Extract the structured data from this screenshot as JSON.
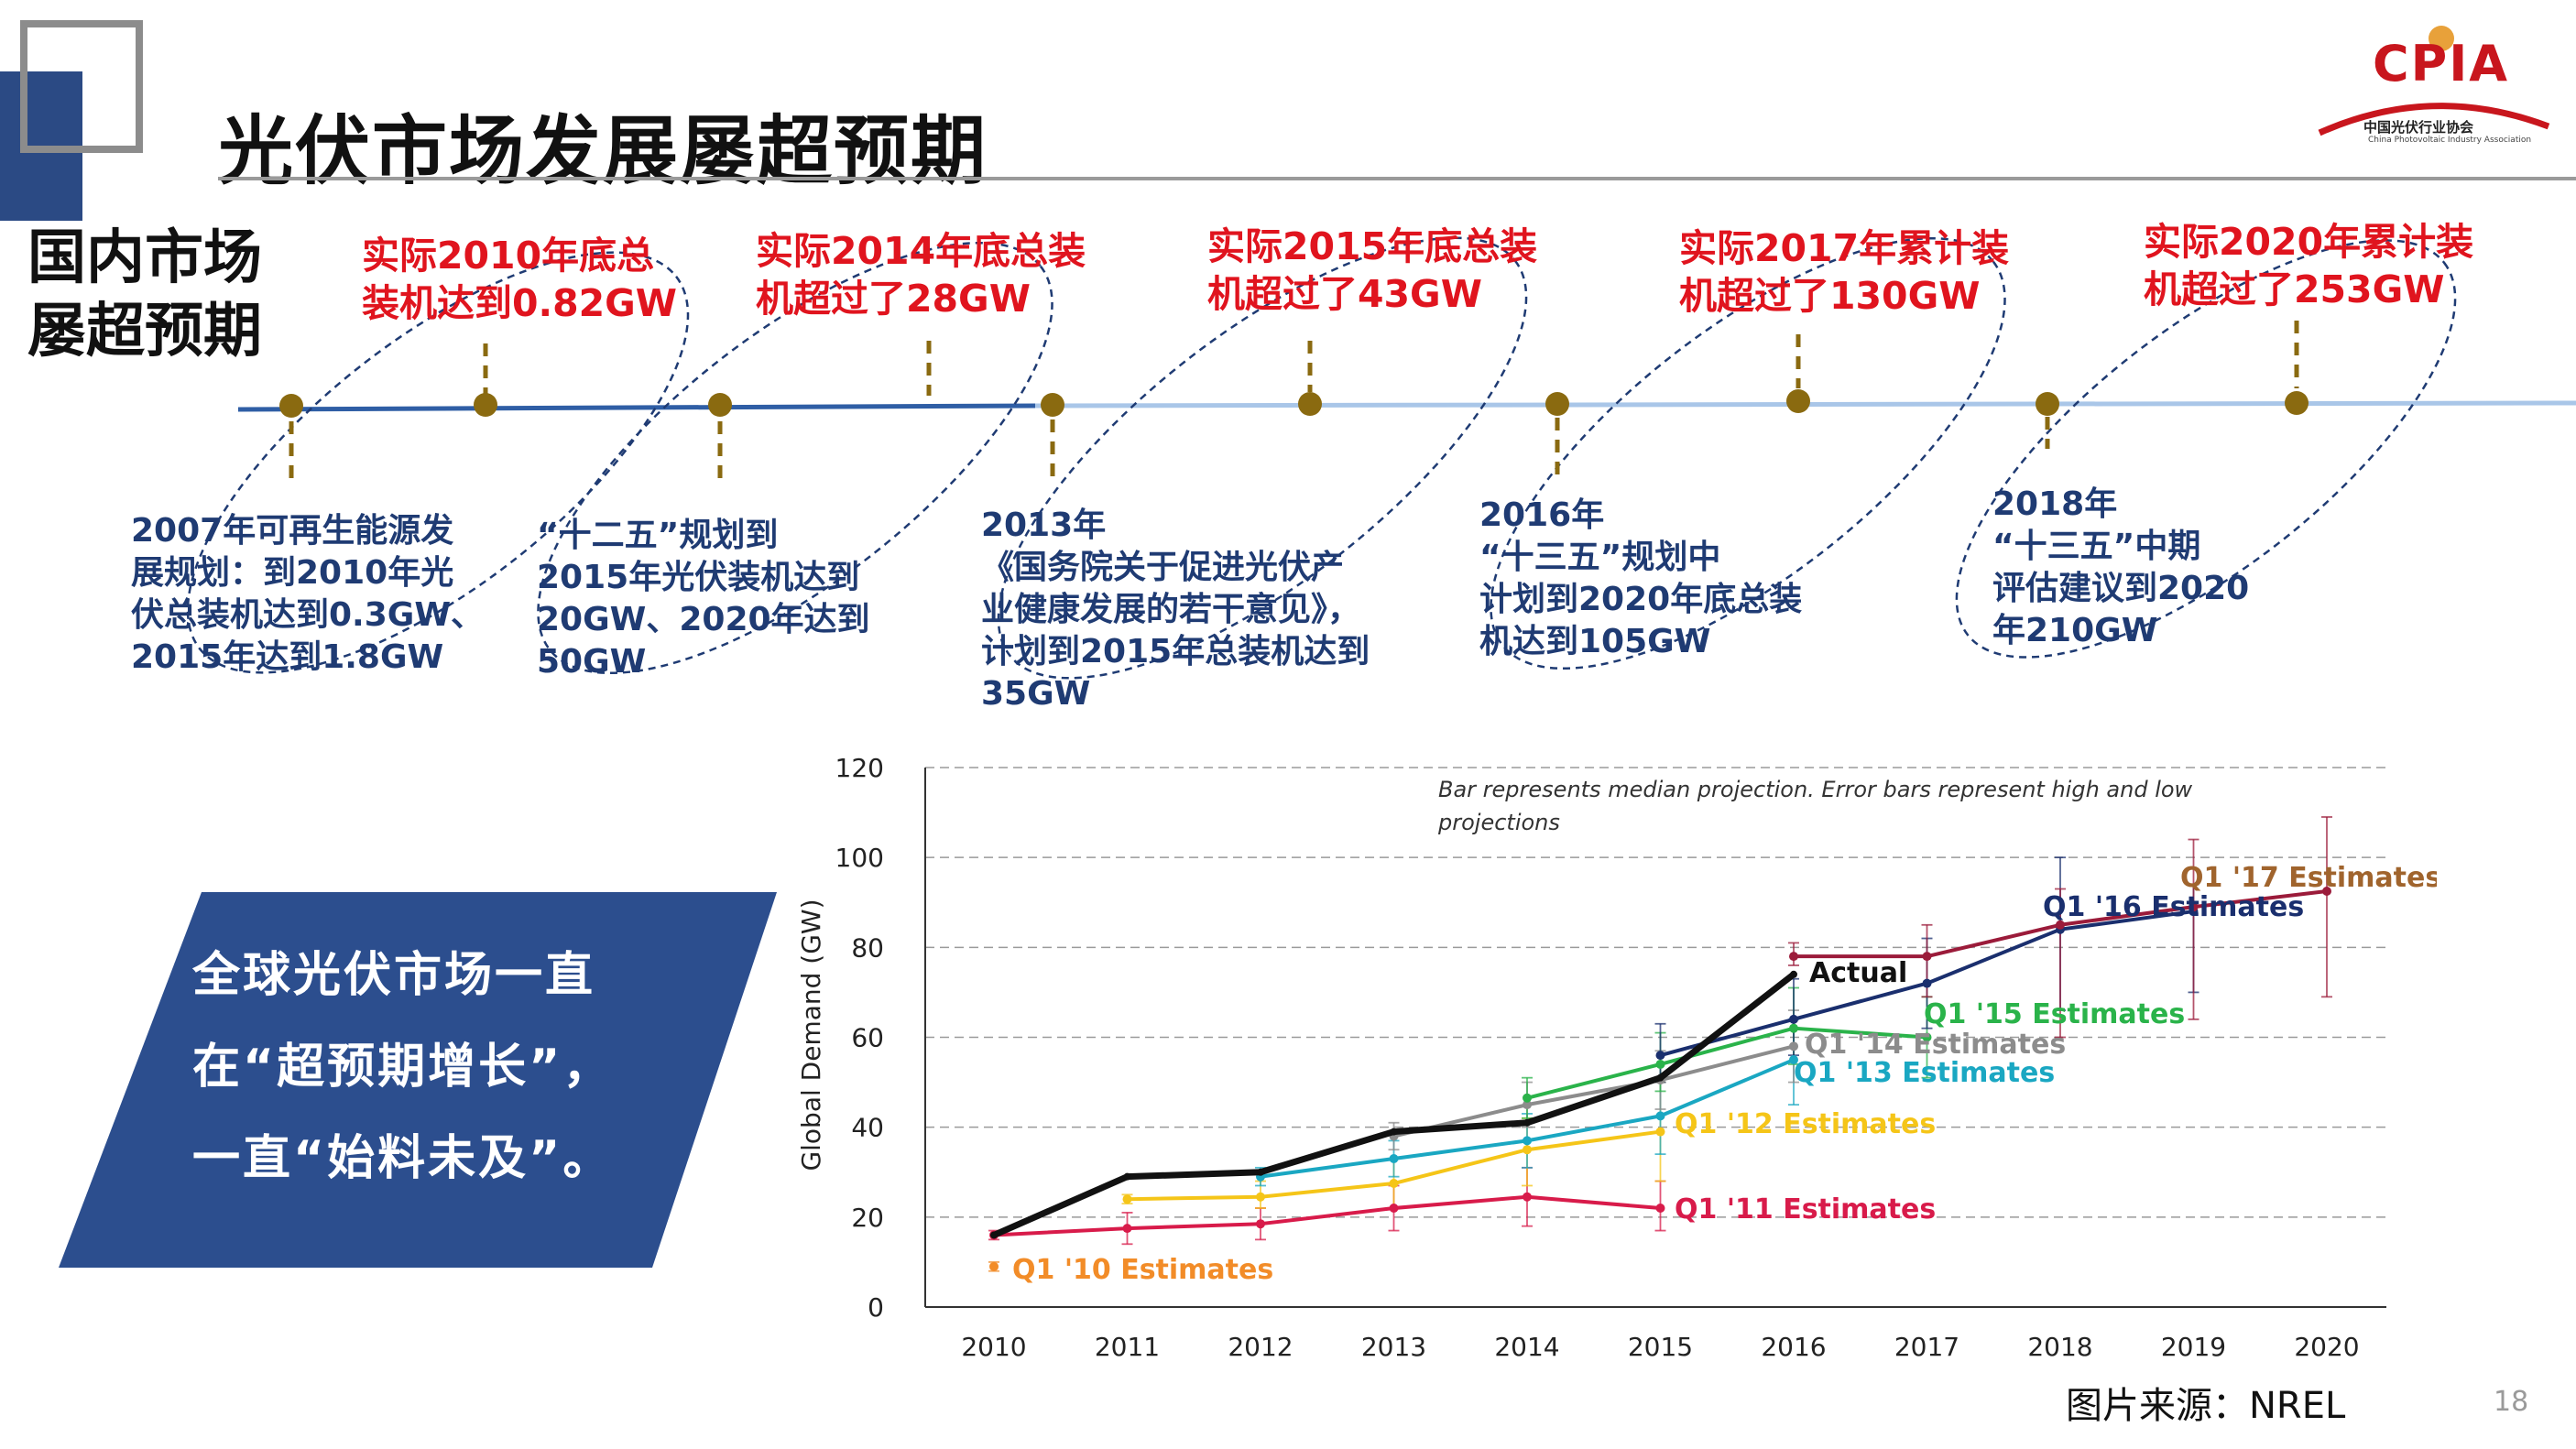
{
  "title": "光伏市场发展屡超预期",
  "logo": {
    "text": "CPIA",
    "cn": "中国光伏行业协会",
    "en": "China Photovoltaic Industry Association"
  },
  "side_heading": [
    "国内市场",
    "屡超预期"
  ],
  "timeline": {
    "top_notes": [
      {
        "lines": [
          "实际2010年底总",
          "装机达到0.82GW"
        ]
      },
      {
        "lines": [
          "实际2014年底总装",
          "机超过了28GW"
        ]
      },
      {
        "lines": [
          "实际2015年底总装",
          "机超过了43GW"
        ]
      },
      {
        "lines": [
          "实际2017年累计装",
          "机超过了130GW"
        ]
      },
      {
        "lines": [
          "实际2020年累计装",
          "机超过了253GW"
        ]
      }
    ],
    "bottom_notes": [
      {
        "lines": [
          "2007年可再生能源发",
          "展规划：到2010年光",
          "伏总装机达到0.3GW、",
          "2015年达到1.8GW"
        ]
      },
      {
        "lines": [
          "“十二五”规划到",
          "2015年光伏装机达到",
          "20GW、2020年达到",
          "50GW"
        ]
      },
      {
        "lines": [
          "2013年",
          "《国务院关于促进光伏产",
          "业健康发展的若干意见》，",
          "计划到2015年总装机达到",
          "35GW"
        ]
      },
      {
        "lines": [
          "2016年",
          "“十三五”规划中",
          "计划到2020年底总装",
          "机达到105GW"
        ]
      },
      {
        "lines": [
          "2018年",
          "“十三五”中期",
          "评估建议到2020",
          "年210GW"
        ]
      }
    ]
  },
  "global_box": {
    "lines": [
      "全球光伏市场一直",
      "在“超预期增长”，",
      "一直“始料未及”。"
    ],
    "color": "#2c4e8e"
  },
  "chart_data": {
    "type": "line",
    "ylabel": "Global Demand (GW)",
    "xlabel": "",
    "ylim": [
      0,
      120
    ],
    "yticks": [
      0,
      20,
      40,
      60,
      80,
      100,
      120
    ],
    "categories": [
      "2010",
      "2011",
      "2012",
      "2013",
      "2014",
      "2015",
      "2016",
      "2017",
      "2018",
      "2019",
      "2020"
    ],
    "annotation": [
      "Bar represents median projection. Error bars represent high and low",
      "projections"
    ],
    "series": [
      {
        "name": "Q1 '10 Estimates",
        "color": "#f28c28",
        "x": [
          2010
        ],
        "values": [
          9
        ],
        "low": [
          8
        ],
        "high": [
          10
        ]
      },
      {
        "name": "Q1 '11 Estimates",
        "color": "#d81b4a",
        "x": [
          2010,
          2011,
          2012,
          2013,
          2014,
          2015
        ],
        "values": [
          16,
          17.5,
          18.5,
          22,
          24.5,
          22
        ],
        "low": [
          15,
          14,
          15,
          17,
          18,
          17
        ],
        "high": [
          17,
          21,
          22,
          27,
          31,
          28
        ]
      },
      {
        "name": "Q1 '12 Estimates",
        "color": "#f5c518",
        "x": [
          2011,
          2012,
          2013,
          2014,
          2015
        ],
        "values": [
          24,
          24.5,
          27.5,
          35,
          39
        ],
        "low": [
          23,
          22,
          22,
          27,
          28
        ],
        "high": [
          25,
          28,
          33,
          42,
          50
        ]
      },
      {
        "name": "Q1 '13 Estimates",
        "color": "#1aa7c2",
        "x": [
          2012,
          2013,
          2014,
          2015,
          2016
        ],
        "values": [
          29,
          33,
          37,
          42.5,
          55
        ],
        "low": [
          27,
          29,
          31,
          34,
          45
        ],
        "high": [
          31,
          37,
          43,
          51,
          64
        ]
      },
      {
        "name": "Q1 '14 Estimates",
        "color": "#8c8c8c",
        "x": [
          2013,
          2014,
          2015,
          2016
        ],
        "values": [
          38,
          45,
          50.5,
          58
        ],
        "low": [
          35,
          40,
          44,
          50
        ],
        "high": [
          41,
          50,
          57,
          66
        ]
      },
      {
        "name": "Q1 '15 Estimates",
        "color": "#2ab34a",
        "x": [
          2014,
          2015,
          2016,
          2017
        ],
        "values": [
          46.5,
          54,
          62,
          60
        ],
        "low": [
          42,
          48,
          54,
          51
        ],
        "high": [
          51,
          61,
          71,
          69
        ]
      },
      {
        "name": "Q1 '16 Estimates",
        "color": "#1a2f6e",
        "x": [
          2015,
          2016,
          2017,
          2018,
          2019
        ],
        "values": [
          56,
          64,
          72,
          84,
          88
        ],
        "low": [
          50,
          56,
          62,
          66,
          70
        ],
        "high": [
          63,
          73,
          82,
          100,
          94
        ]
      },
      {
        "name": "Q1 '17 Estimates",
        "color": "#9b1b3a",
        "x": [
          2016,
          2017,
          2018,
          2019,
          2020
        ],
        "values": [
          78,
          78,
          85,
          89,
          92.5
        ],
        "low": [
          76,
          69,
          60,
          64,
          69
        ],
        "high": [
          81,
          85,
          93,
          104,
          109
        ]
      },
      {
        "name": "Actual",
        "color": "#111111",
        "x": [
          2010,
          2011,
          2012,
          2013,
          2014,
          2015,
          2016
        ],
        "values": [
          16,
          29,
          30,
          39,
          41,
          51,
          74
        ]
      }
    ],
    "error_bar_color": "#b08060",
    "labels": [
      {
        "text": "Q1 '17 Estimates",
        "color": "#a0642d"
      },
      {
        "text": "Q1 '16 Estimates",
        "color": "#1a2f6e"
      },
      {
        "text": "Q1 '15 Estimates",
        "color": "#2ab34a"
      },
      {
        "text": "Q1 '14 Estimates",
        "color": "#8c8c8c"
      },
      {
        "text": "Q1 '13 Estimates",
        "color": "#1aa7c2"
      },
      {
        "text": "Q1 '12 Estimates",
        "color": "#f5c518"
      },
      {
        "text": "Q1 '11 Estimates",
        "color": "#d81b4a"
      },
      {
        "text": "Q1 '10 Estimates",
        "color": "#f28c28"
      },
      {
        "text": "Actual",
        "color": "#111111"
      }
    ]
  },
  "source": "图片来源：NREL",
  "page_number": "18"
}
